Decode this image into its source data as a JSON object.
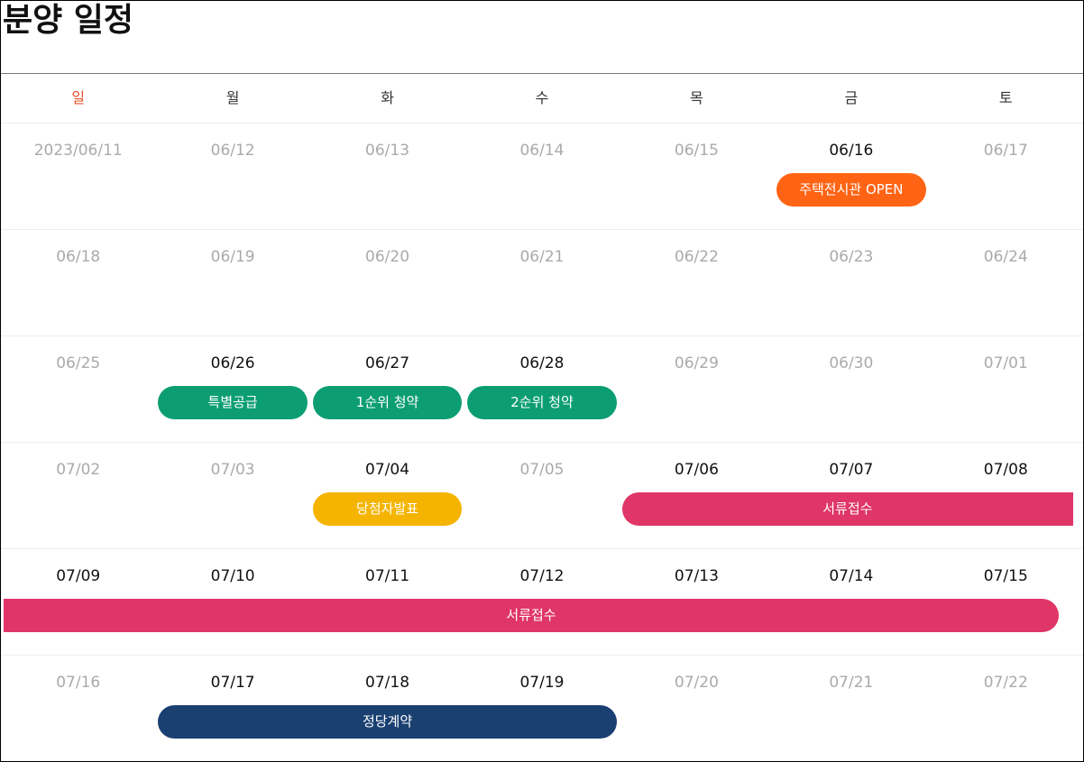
{
  "title": "분양 일정",
  "weekdays": [
    "일",
    "월",
    "화",
    "수",
    "목",
    "금",
    "토"
  ],
  "weeks": [
    {
      "days": [
        {
          "label": "2023/06/11",
          "active": false
        },
        {
          "label": "06/12",
          "active": false
        },
        {
          "label": "06/13",
          "active": false
        },
        {
          "label": "06/14",
          "active": false
        },
        {
          "label": "06/15",
          "active": false
        },
        {
          "label": "06/16",
          "active": true
        },
        {
          "label": "06/17",
          "active": false
        }
      ],
      "events": [
        {
          "label": "주택전시관 OPEN",
          "start": 5,
          "span": 1,
          "color": "#ff6414"
        }
      ]
    },
    {
      "days": [
        {
          "label": "06/18",
          "active": false
        },
        {
          "label": "06/19",
          "active": false
        },
        {
          "label": "06/20",
          "active": false
        },
        {
          "label": "06/21",
          "active": false
        },
        {
          "label": "06/22",
          "active": false
        },
        {
          "label": "06/23",
          "active": false
        },
        {
          "label": "06/24",
          "active": false
        }
      ],
      "events": []
    },
    {
      "days": [
        {
          "label": "06/25",
          "active": false
        },
        {
          "label": "06/26",
          "active": true
        },
        {
          "label": "06/27",
          "active": true
        },
        {
          "label": "06/28",
          "active": true
        },
        {
          "label": "06/29",
          "active": false
        },
        {
          "label": "06/30",
          "active": false
        },
        {
          "label": "07/01",
          "active": false
        }
      ],
      "events": [
        {
          "label": "특별공급",
          "start": 1,
          "span": 1,
          "color": "#0c9e72"
        },
        {
          "label": "1순위 청약",
          "start": 2,
          "span": 1,
          "color": "#0c9e72"
        },
        {
          "label": "2순위 청약",
          "start": 3,
          "span": 1,
          "color": "#0c9e72"
        }
      ]
    },
    {
      "days": [
        {
          "label": "07/02",
          "active": false
        },
        {
          "label": "07/03",
          "active": false
        },
        {
          "label": "07/04",
          "active": true
        },
        {
          "label": "07/05",
          "active": false
        },
        {
          "label": "07/06",
          "active": true
        },
        {
          "label": "07/07",
          "active": true
        },
        {
          "label": "07/08",
          "active": true
        }
      ],
      "events": [
        {
          "label": "당첨자발표",
          "start": 2,
          "span": 1,
          "color": "#f4b400"
        },
        {
          "label": "서류접수",
          "start": 4,
          "span": 3,
          "color": "#df3567",
          "open_right": true
        }
      ]
    },
    {
      "days": [
        {
          "label": "07/09",
          "active": true
        },
        {
          "label": "07/10",
          "active": true
        },
        {
          "label": "07/11",
          "active": true
        },
        {
          "label": "07/12",
          "active": true
        },
        {
          "label": "07/13",
          "active": true
        },
        {
          "label": "07/14",
          "active": true
        },
        {
          "label": "07/15",
          "active": true
        }
      ],
      "events": [
        {
          "label": "서류접수",
          "start": 0,
          "span": 7,
          "color": "#df3567",
          "open_left": true
        }
      ]
    },
    {
      "days": [
        {
          "label": "07/16",
          "active": false
        },
        {
          "label": "07/17",
          "active": true
        },
        {
          "label": "07/18",
          "active": true
        },
        {
          "label": "07/19",
          "active": true
        },
        {
          "label": "07/20",
          "active": false
        },
        {
          "label": "07/21",
          "active": false
        },
        {
          "label": "07/22",
          "active": false
        }
      ],
      "events": [
        {
          "label": "정당계약",
          "start": 1,
          "span": 3,
          "color": "#1a4072"
        }
      ]
    }
  ]
}
